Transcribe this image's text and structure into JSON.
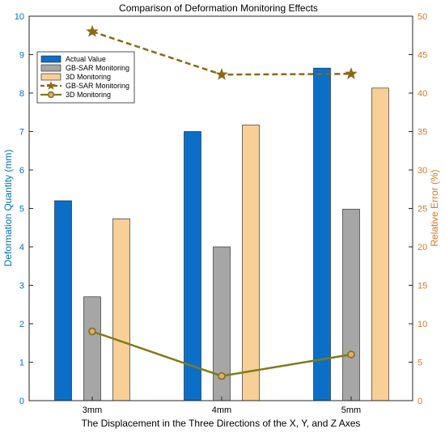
{
  "chart_data": {
    "type": "bar",
    "title": "Comparison of Deformation Monitoring Effects",
    "xlabel": "The Displacement in the Three Directions of the X, Y, and Z Axes",
    "ylabel_left": "Deformation Quantity (mm)",
    "ylabel_right": "Relative Error (%)",
    "categories": [
      "3mm",
      "4mm",
      "5mm"
    ],
    "ylim_left": [
      0,
      10
    ],
    "ylim_right": [
      0,
      50
    ],
    "yticks_left": [
      "0",
      "1",
      "2",
      "3",
      "4",
      "5",
      "6",
      "7",
      "8",
      "9",
      "10"
    ],
    "yticks_right": [
      "0",
      "5",
      "10",
      "15",
      "20",
      "25",
      "30",
      "35",
      "40",
      "45",
      "50"
    ],
    "legend_position": "top-left",
    "grid": false,
    "bar_series": [
      {
        "name": "Actual Value",
        "values": [
          5.2,
          7.0,
          8.65
        ],
        "color": "#0b6fc8"
      },
      {
        "name": "GB-SAR Monitoring",
        "values": [
          2.7,
          4.0,
          4.98
        ],
        "color": "#a6a6a6"
      },
      {
        "name": "3D Monitoring",
        "values": [
          4.73,
          7.17,
          8.13
        ],
        "color": "#f8cf96"
      }
    ],
    "line_series": [
      {
        "name": "GB-SAR Monitoring",
        "axis": "right",
        "values": [
          48.0,
          42.4,
          42.5
        ],
        "color": "#8b6914",
        "style": "dashed",
        "marker": "star"
      },
      {
        "name": "3D Monitoring",
        "axis": "right",
        "values": [
          9.0,
          3.2,
          6.0
        ],
        "color": "#7f7a1a",
        "style": "solid",
        "marker": "circle"
      }
    ],
    "colors": {
      "left_axis": "#0072bd",
      "right_axis": "#d27b27"
    }
  }
}
